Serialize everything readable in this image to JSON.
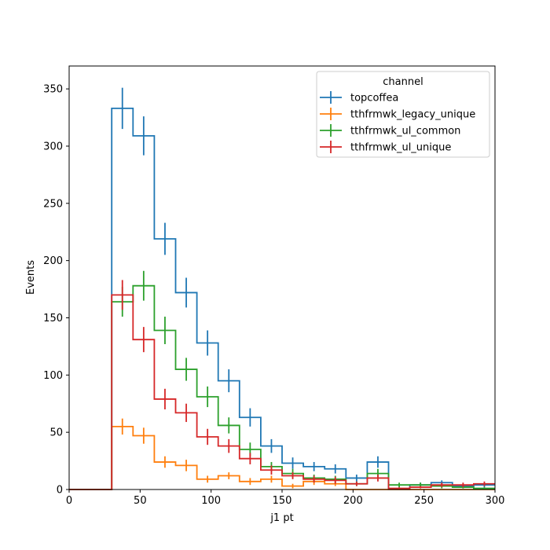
{
  "chart_data": {
    "type": "histogram",
    "xlabel": "j1 pt",
    "ylabel": "Events",
    "xlim": [
      0,
      300
    ],
    "ylim": [
      0,
      370
    ],
    "xticks": [
      0,
      50,
      100,
      150,
      200,
      250,
      300
    ],
    "yticks": [
      0,
      50,
      100,
      150,
      200,
      250,
      300,
      350
    ],
    "grid": false,
    "legend": {
      "title": "channel",
      "placement": "top-right"
    },
    "bin_edges": [
      0,
      15,
      30,
      45,
      60,
      75,
      90,
      105,
      120,
      135,
      150,
      165,
      180,
      195,
      210,
      225,
      240,
      255,
      270,
      285,
      300
    ],
    "series": [
      {
        "name": "topcoffea",
        "color": "#1f77b4",
        "values": [
          0,
          0,
          333,
          309,
          219,
          172,
          128,
          95,
          63,
          38,
          23,
          20,
          18,
          10,
          24,
          0,
          4,
          6,
          3,
          4
        ],
        "errors": [
          0,
          0,
          18,
          17,
          14,
          13,
          11,
          10,
          8,
          6,
          5,
          4,
          4,
          3,
          5,
          0,
          2,
          2,
          2,
          2
        ]
      },
      {
        "name": "tthfrmwk_legacy_unique",
        "color": "#ff7f0e",
        "values": [
          0,
          0,
          55,
          47,
          24,
          21,
          9,
          12,
          7,
          9,
          3,
          7,
          5,
          0,
          0,
          0,
          0,
          0,
          0,
          0
        ],
        "errors": [
          0,
          0,
          7,
          7,
          5,
          5,
          3,
          3,
          3,
          3,
          2,
          3,
          2,
          0,
          0,
          0,
          0,
          0,
          0,
          0
        ]
      },
      {
        "name": "tthfrmwk_ul_common",
        "color": "#2ca02c",
        "values": [
          0,
          0,
          164,
          178,
          139,
          105,
          81,
          56,
          35,
          20,
          14,
          10,
          9,
          5,
          14,
          4,
          4,
          3,
          2,
          1
        ],
        "errors": [
          0,
          0,
          13,
          13,
          12,
          10,
          9,
          7,
          6,
          4,
          4,
          3,
          3,
          2,
          4,
          2,
          2,
          2,
          1,
          1
        ]
      },
      {
        "name": "tthfrmwk_ul_unique",
        "color": "#d62728",
        "values": [
          0,
          0,
          170,
          131,
          79,
          67,
          46,
          38,
          27,
          17,
          12,
          9,
          8,
          5,
          10,
          1,
          2,
          4,
          4,
          5
        ],
        "errors": [
          0,
          0,
          13,
          11,
          9,
          8,
          7,
          6,
          5,
          4,
          3,
          3,
          3,
          2,
          3,
          1,
          1,
          2,
          2,
          2
        ]
      }
    ]
  }
}
